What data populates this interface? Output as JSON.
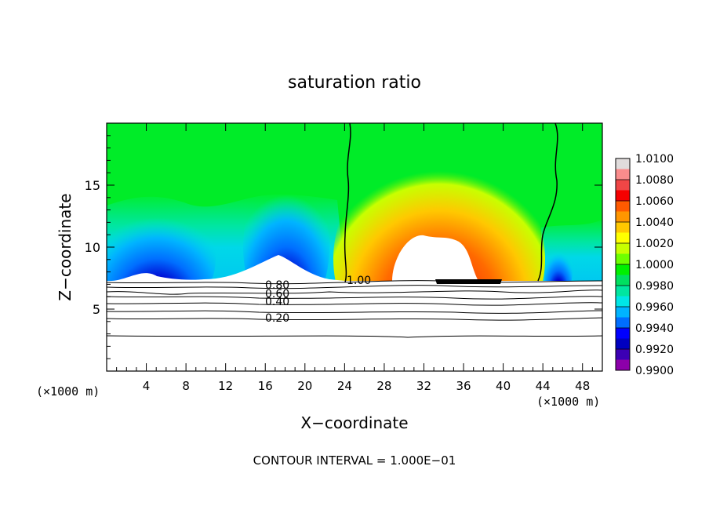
{
  "chart_data": {
    "type": "heatmap",
    "title": "saturation ratio",
    "xlabel": "X−coordinate",
    "ylabel": "Z−coordinate",
    "x_unit_left": "(×1000 m)",
    "x_unit_right": "(×1000 m)",
    "xlim": [
      0,
      50
    ],
    "ylim": [
      0,
      20
    ],
    "x_ticks": [
      4,
      8,
      12,
      16,
      20,
      24,
      28,
      32,
      36,
      40,
      44,
      48
    ],
    "y_ticks": [
      5,
      10,
      15
    ],
    "colorbar": {
      "min": 0.99,
      "max": 1.01,
      "labels": [
        "1.0100",
        "1.0080",
        "1.0060",
        "1.0040",
        "1.0020",
        "1.0000",
        "0.9980",
        "0.9960",
        "0.9940",
        "0.9920",
        "0.9900"
      ],
      "colors": [
        "#e0dcdc",
        "#fa8c8c",
        "#f04646",
        "#f50000",
        "#ff5a00",
        "#ff9600",
        "#ffc800",
        "#ffff00",
        "#c8ff00",
        "#6eff00",
        "#00f000",
        "#00e060",
        "#00e6a0",
        "#00e6e6",
        "#00b4ff",
        "#006eff",
        "#0000ff",
        "#0000c0",
        "#3c00b4",
        "#8c00aa"
      ]
    },
    "contour_interval_text": "CONTOUR INTERVAL = 1.000E−01",
    "contour_labels": [
      "1.00",
      "0.80",
      "0.60",
      "0.40",
      "0.20"
    ],
    "cloud_base_z": 7.2,
    "supersaturated_region_x": [
      24,
      43.5
    ]
  }
}
